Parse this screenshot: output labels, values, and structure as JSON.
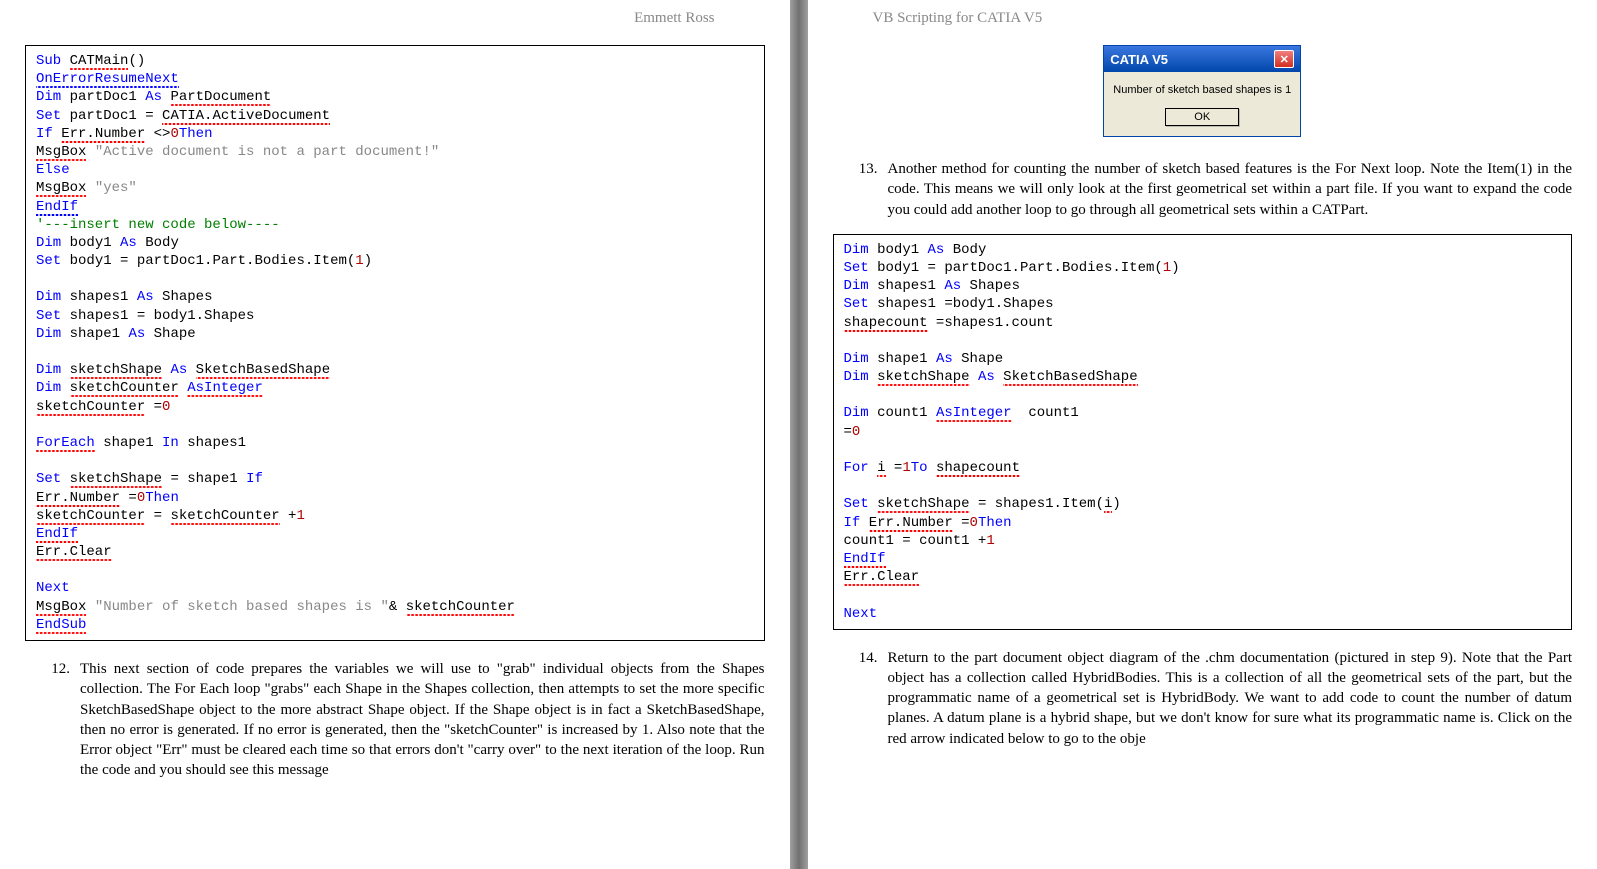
{
  "leftPage": {
    "header": "Emmett Ross",
    "code": [
      [
        {
          "t": "Sub",
          "c": "kw"
        },
        {
          "t": " "
        },
        {
          "t": "CATMain",
          "c": "squig-red"
        },
        {
          "t": "()"
        }
      ],
      [
        {
          "t": "OnErrorResumeNext",
          "c": "kw squig-blue"
        }
      ],
      [
        {
          "t": "Dim",
          "c": "kw"
        },
        {
          "t": " partDoc1 "
        },
        {
          "t": "As",
          "c": "kw"
        },
        {
          "t": " "
        },
        {
          "t": "PartDocument",
          "c": "squig-red"
        }
      ],
      [
        {
          "t": "Set",
          "c": "kw"
        },
        {
          "t": " partDoc1 = "
        },
        {
          "t": "CATIA.ActiveDocument",
          "c": "squig-red"
        }
      ],
      [
        {
          "t": "If",
          "c": "kw"
        },
        {
          "t": " "
        },
        {
          "t": "Err.Number",
          "c": "squig-red"
        },
        {
          "t": " <>"
        },
        {
          "t": "0",
          "c": "num"
        },
        {
          "t": "Then",
          "c": "kw"
        }
      ],
      [
        {
          "t": "MsgBox",
          "c": "squig-red"
        },
        {
          "t": " "
        },
        {
          "t": "\"Active document is not a part document!\"",
          "c": "str"
        }
      ],
      [
        {
          "t": "Else",
          "c": "kw"
        }
      ],
      [
        {
          "t": "MsgBox",
          "c": "squig-red"
        },
        {
          "t": " "
        },
        {
          "t": "\"yes\"",
          "c": "str"
        }
      ],
      [
        {
          "t": "EndIf",
          "c": "kw squig-blue"
        }
      ],
      [
        {
          "t": "'---insert new code below----",
          "c": "cmt"
        }
      ],
      [
        {
          "t": "Dim",
          "c": "kw"
        },
        {
          "t": " body1 "
        },
        {
          "t": "As",
          "c": "kw"
        },
        {
          "t": " Body"
        }
      ],
      [
        {
          "t": "Set",
          "c": "kw"
        },
        {
          "t": " body1 = partDoc1.Part.Bodies.Item("
        },
        {
          "t": "1",
          "c": "num"
        },
        {
          "t": ")"
        }
      ],
      [
        {
          "t": ""
        }
      ],
      [
        {
          "t": "Dim",
          "c": "kw"
        },
        {
          "t": " shapes1 "
        },
        {
          "t": "As",
          "c": "kw"
        },
        {
          "t": " Shapes"
        }
      ],
      [
        {
          "t": "Set",
          "c": "kw"
        },
        {
          "t": " shapes1 = body1.Shapes"
        }
      ],
      [
        {
          "t": "Dim",
          "c": "kw"
        },
        {
          "t": " shape1 "
        },
        {
          "t": "As",
          "c": "kw"
        },
        {
          "t": " Shape"
        }
      ],
      [
        {
          "t": ""
        }
      ],
      [
        {
          "t": "Dim",
          "c": "kw"
        },
        {
          "t": " "
        },
        {
          "t": "sketchShape",
          "c": "squig-red"
        },
        {
          "t": " "
        },
        {
          "t": "As",
          "c": "kw"
        },
        {
          "t": " "
        },
        {
          "t": "SketchBasedShape",
          "c": "squig-red"
        }
      ],
      [
        {
          "t": "Dim",
          "c": "kw"
        },
        {
          "t": " "
        },
        {
          "t": "sketchCounter",
          "c": "squig-red"
        },
        {
          "t": " "
        },
        {
          "t": "AsInteger",
          "c": "kw squig-red"
        }
      ],
      [
        {
          "t": "sketchCounter",
          "c": "squig-red"
        },
        {
          "t": " ="
        },
        {
          "t": "0",
          "c": "num"
        }
      ],
      [
        {
          "t": ""
        }
      ],
      [
        {
          "t": "ForEach",
          "c": "kw squig-red"
        },
        {
          "t": " shape1 "
        },
        {
          "t": "In",
          "c": "kw"
        },
        {
          "t": " shapes1"
        }
      ],
      [
        {
          "t": ""
        }
      ],
      [
        {
          "t": "Set",
          "c": "kw"
        },
        {
          "t": " "
        },
        {
          "t": "sketchShape",
          "c": "squig-red"
        },
        {
          "t": " = shape1 "
        },
        {
          "t": "If",
          "c": "kw"
        }
      ],
      [
        {
          "t": "Err.Number",
          "c": "squig-red"
        },
        {
          "t": " ="
        },
        {
          "t": "0",
          "c": "num"
        },
        {
          "t": "Then",
          "c": "kw"
        }
      ],
      [
        {
          "t": "sketchCounter",
          "c": "squig-red"
        },
        {
          "t": " = "
        },
        {
          "t": "sketchCounter",
          "c": "squig-red"
        },
        {
          "t": " +"
        },
        {
          "t": "1",
          "c": "num"
        }
      ],
      [
        {
          "t": "EndIf",
          "c": "kw squig-red"
        }
      ],
      [
        {
          "t": "Err.Clear",
          "c": "squig-red"
        }
      ],
      [
        {
          "t": ""
        }
      ],
      [
        {
          "t": "Next",
          "c": "kw"
        }
      ],
      [
        {
          "t": "MsgBox",
          "c": "squig-red"
        },
        {
          "t": " "
        },
        {
          "t": "\"Number of sketch based shapes is \"",
          "c": "str"
        },
        {
          "t": "& "
        },
        {
          "t": "sketchCounter",
          "c": "squig-red"
        }
      ],
      [
        {
          "t": "EndSub",
          "c": "kw squig-red"
        }
      ]
    ],
    "para12": {
      "num": "12.",
      "text": "This next section of code prepares the variables we will use to \"grab\" individual objects from the Shapes collection. The For Each loop \"grabs\" each Shape in the Shapes collection, then attempts to set the more specific SketchBasedShape object to the more abstract Shape object. If the Shape object is in fact a SketchBasedShape, then no error is generated. If no error is generated, then the \"sketchCounter\" is increased by 1. Also note that the Error object \"Err\" must be cleared each time so that errors don't \"carry over\" to the next iteration of the loop. Run the code and you should see this message"
    }
  },
  "rightPage": {
    "header": "VB Scripting for CATIA V5",
    "dialog": {
      "title": "CATIA V5",
      "message": "Number of sketch based shapes is 1",
      "button": "OK"
    },
    "para13": {
      "num": "13.",
      "text": "Another method for counting the number of sketch based features is the For Next loop. Note the Item(1) in the code. This means we will only look at the first geometrical set within a part file. If you want to expand the code you could add another loop to go through all geometrical sets within a CATPart."
    },
    "code": [
      [
        {
          "t": "Dim",
          "c": "kw"
        },
        {
          "t": " body1 "
        },
        {
          "t": "As",
          "c": "kw"
        },
        {
          "t": " Body"
        }
      ],
      [
        {
          "t": "Set",
          "c": "kw"
        },
        {
          "t": " body1 = partDoc1.Part.Bodies.Item("
        },
        {
          "t": "1",
          "c": "num"
        },
        {
          "t": ")"
        }
      ],
      [
        {
          "t": "Dim",
          "c": "kw"
        },
        {
          "t": " shapes1 "
        },
        {
          "t": "As",
          "c": "kw"
        },
        {
          "t": " Shapes"
        }
      ],
      [
        {
          "t": "Set",
          "c": "kw"
        },
        {
          "t": " shapes1 =body1.Shapes"
        }
      ],
      [
        {
          "t": "shapecount",
          "c": "squig-red"
        },
        {
          "t": " =shapes1.count"
        }
      ],
      [
        {
          "t": ""
        }
      ],
      [
        {
          "t": "Dim",
          "c": "kw"
        },
        {
          "t": " shape1 "
        },
        {
          "t": "As",
          "c": "kw"
        },
        {
          "t": " Shape"
        }
      ],
      [
        {
          "t": "Dim",
          "c": "kw"
        },
        {
          "t": " "
        },
        {
          "t": "sketchShape",
          "c": "squig-red"
        },
        {
          "t": " "
        },
        {
          "t": "As",
          "c": "kw"
        },
        {
          "t": " "
        },
        {
          "t": "SketchBasedShape",
          "c": "squig-red"
        }
      ],
      [
        {
          "t": ""
        }
      ],
      [
        {
          "t": "Dim",
          "c": "kw"
        },
        {
          "t": " count1 "
        },
        {
          "t": "AsInteger",
          "c": "kw squig-red"
        },
        {
          "t": "  count1"
        }
      ],
      [
        {
          "t": "="
        },
        {
          "t": "0",
          "c": "num"
        }
      ],
      [
        {
          "t": ""
        }
      ],
      [
        {
          "t": "For",
          "c": "kw"
        },
        {
          "t": " "
        },
        {
          "t": "i",
          "c": "squig-red"
        },
        {
          "t": " ="
        },
        {
          "t": "1",
          "c": "num"
        },
        {
          "t": "To",
          "c": "kw"
        },
        {
          "t": " "
        },
        {
          "t": "shapecount",
          "c": "squig-red"
        }
      ],
      [
        {
          "t": ""
        }
      ],
      [
        {
          "t": "Set",
          "c": "kw"
        },
        {
          "t": " "
        },
        {
          "t": "sketchShape",
          "c": "squig-red"
        },
        {
          "t": " = shapes1.Item("
        },
        {
          "t": "i",
          "c": "squig-red"
        },
        {
          "t": ")"
        }
      ],
      [
        {
          "t": "If",
          "c": "kw"
        },
        {
          "t": " "
        },
        {
          "t": "Err.Number",
          "c": "squig-red"
        },
        {
          "t": " ="
        },
        {
          "t": "0",
          "c": "num"
        },
        {
          "t": "Then",
          "c": "kw"
        }
      ],
      [
        {
          "t": "count1 = count1 +"
        },
        {
          "t": "1",
          "c": "num"
        }
      ],
      [
        {
          "t": "EndIf",
          "c": "kw squig-red"
        }
      ],
      [
        {
          "t": "Err.Clear",
          "c": "squig-red"
        }
      ],
      [
        {
          "t": ""
        }
      ],
      [
        {
          "t": "Next",
          "c": "kw"
        }
      ]
    ],
    "para14": {
      "num": "14.",
      "text": "Return to the part document object diagram of the .chm documentation (pictured in step 9). Note that the Part object has a collection called HybridBodies. This is a collection of all the geometrical sets of the part, but the programmatic name of a geometrical set is HybridBody. We want to add code to count the number of datum planes. A datum plane is a hybrid shape, but we don't know for sure what its programmatic name is. Click on the red arrow indicated below to go to the obje"
    }
  }
}
